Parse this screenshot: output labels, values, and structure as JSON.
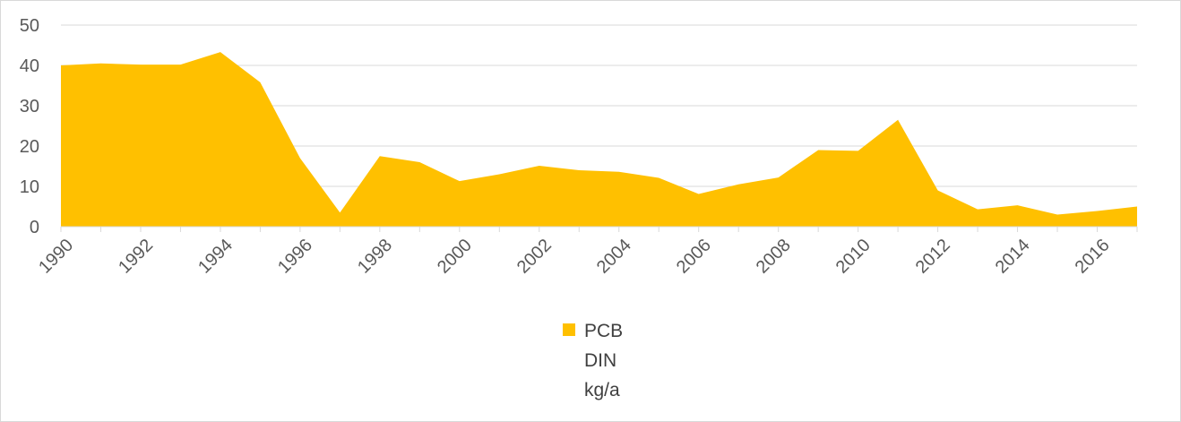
{
  "chart_data": {
    "type": "area",
    "x": [
      1990,
      1991,
      1992,
      1993,
      1994,
      1995,
      1996,
      1997,
      1998,
      1999,
      2000,
      2001,
      2002,
      2003,
      2004,
      2005,
      2006,
      2007,
      2008,
      2009,
      2010,
      2011,
      2012,
      2013,
      2014,
      2015,
      2016,
      2017
    ],
    "series": [
      {
        "name": "PCB",
        "values": [
          40,
          40.5,
          40.2,
          40.2,
          43.3,
          35.8,
          17,
          3.5,
          17.5,
          16,
          11.3,
          13,
          15.1,
          14,
          13.6,
          12.1,
          8.1,
          10.5,
          12.2,
          19,
          18.8,
          26.5,
          9,
          4.3,
          5.3,
          3,
          3.9,
          5
        ],
        "color": "#FFC000"
      }
    ],
    "legend_lines": [
      "PCB",
      "DIN",
      "kg/a"
    ],
    "y_ticks": [
      0,
      10,
      20,
      30,
      40,
      50
    ],
    "x_tick_labels": [
      "1990",
      "1992",
      "1994",
      "1996",
      "1998",
      "2000",
      "2002",
      "2004",
      "2006",
      "2008",
      "2010",
      "2012",
      "2014",
      "2016"
    ],
    "ylim": [
      0,
      50
    ],
    "grid": true,
    "legend_position": "bottom"
  }
}
